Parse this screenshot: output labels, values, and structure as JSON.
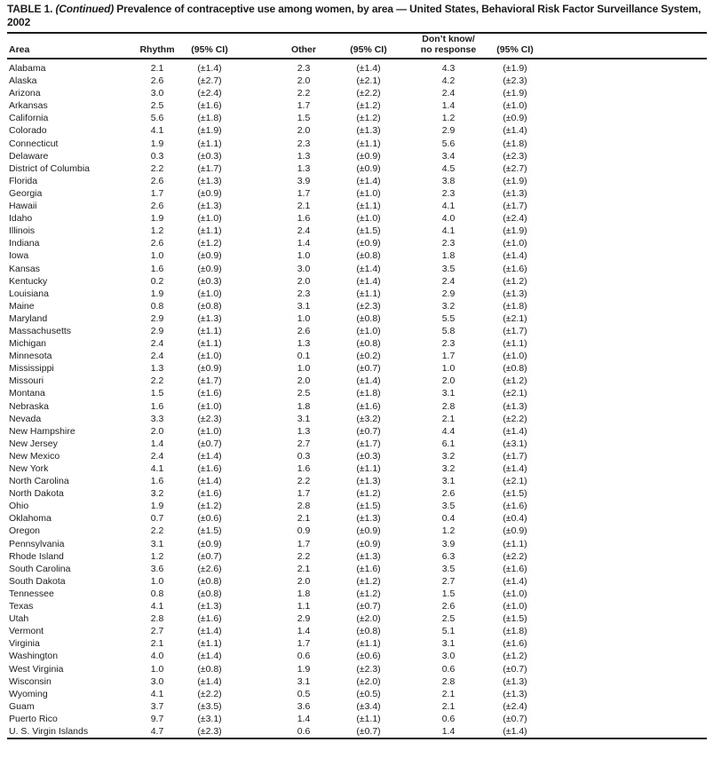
{
  "doc": {
    "title_prefix": "TABLE 1.",
    "title_continued": "(Continued)",
    "title_rest": "Prevalence of contraceptive use among women, by area — United States, Behavioral Risk Factor Surveillance System, 2002"
  },
  "table": {
    "header": {
      "area": "Area",
      "rhythm": "Rhythm",
      "ci_1": "(95% CI)",
      "other": "Other",
      "ci_2": "(95% CI)",
      "dont_know_line1": "Don’t know/",
      "dont_know_line2": "no response",
      "ci_3": "(95% CI)"
    },
    "columns": [
      "Area",
      "Rhythm",
      "(95% CI)",
      "Other",
      "(95% CI)",
      "Don’t know/no response",
      "(95% CI)"
    ],
    "rows": [
      [
        "Alabama",
        "2.1",
        "(±1.4)",
        "2.3",
        "(±1.4)",
        "4.3",
        "(±1.9)"
      ],
      [
        "Alaska",
        "2.6",
        "(±2.7)",
        "2.0",
        "(±2.1)",
        "4.2",
        "(±2.3)"
      ],
      [
        "Arizona",
        "3.0",
        "(±2.4)",
        "2.2",
        "(±2.2)",
        "2.4",
        "(±1.9)"
      ],
      [
        "Arkansas",
        "2.5",
        "(±1.6)",
        "1.7",
        "(±1.2)",
        "1.4",
        "(±1.0)"
      ],
      [
        "California",
        "5.6",
        "(±1.8)",
        "1.5",
        "(±1.2)",
        "1.2",
        "(±0.9)"
      ],
      [
        "Colorado",
        "4.1",
        "(±1.9)",
        "2.0",
        "(±1.3)",
        "2.9",
        "(±1.4)"
      ],
      [
        "Connecticut",
        "1.9",
        "(±1.1)",
        "2.3",
        "(±1.1)",
        "5.6",
        "(±1.8)"
      ],
      [
        "Delaware",
        "0.3",
        "(±0.3)",
        "1.3",
        "(±0.9)",
        "3.4",
        "(±2.3)"
      ],
      [
        "District of Columbia",
        "2.2",
        "(±1.7)",
        "1.3",
        "(±0.9)",
        "4.5",
        "(±2.7)"
      ],
      [
        "Florida",
        "2.6",
        "(±1.3)",
        "3.9",
        "(±1.4)",
        "3.8",
        "(±1.9)"
      ],
      [
        "Georgia",
        "1.7",
        "(±0.9)",
        "1.7",
        "(±1.0)",
        "2.3",
        "(±1.3)"
      ],
      [
        "Hawaii",
        "2.6",
        "(±1.3)",
        "2.1",
        "(±1.1)",
        "4.1",
        "(±1.7)"
      ],
      [
        "Idaho",
        "1.9",
        "(±1.0)",
        "1.6",
        "(±1.0)",
        "4.0",
        "(±2.4)"
      ],
      [
        "Illinois",
        "1.2",
        "(±1.1)",
        "2.4",
        "(±1.5)",
        "4.1",
        "(±1.9)"
      ],
      [
        "Indiana",
        "2.6",
        "(±1.2)",
        "1.4",
        "(±0.9)",
        "2.3",
        "(±1.0)"
      ],
      [
        "Iowa",
        "1.0",
        "(±0.9)",
        "1.0",
        "(±0.8)",
        "1.8",
        "(±1.4)"
      ],
      [
        "Kansas",
        "1.6",
        "(±0.9)",
        "3.0",
        "(±1.4)",
        "3.5",
        "(±1.6)"
      ],
      [
        "Kentucky",
        "0.2",
        "(±0.3)",
        "2.0",
        "(±1.4)",
        "2.4",
        "(±1.2)"
      ],
      [
        "Louisiana",
        "1.9",
        "(±1.0)",
        "2.3",
        "(±1.1)",
        "2.9",
        "(±1.3)"
      ],
      [
        "Maine",
        "0.8",
        "(±0.8)",
        "3.1",
        "(±2.3)",
        "3.2",
        "(±1.8)"
      ],
      [
        "Maryland",
        "2.9",
        "(±1.3)",
        "1.0",
        "(±0.8)",
        "5.5",
        "(±2.1)"
      ],
      [
        "Massachusetts",
        "2.9",
        "(±1.1)",
        "2.6",
        "(±1.0)",
        "5.8",
        "(±1.7)"
      ],
      [
        "Michigan",
        "2.4",
        "(±1.1)",
        "1.3",
        "(±0.8)",
        "2.3",
        "(±1.1)"
      ],
      [
        "Minnesota",
        "2.4",
        "(±1.0)",
        "0.1",
        "(±0.2)",
        "1.7",
        "(±1.0)"
      ],
      [
        "Mississippi",
        "1.3",
        "(±0.9)",
        "1.0",
        "(±0.7)",
        "1.0",
        "(±0.8)"
      ],
      [
        "Missouri",
        "2.2",
        "(±1.7)",
        "2.0",
        "(±1.4)",
        "2.0",
        "(±1.2)"
      ],
      [
        "Montana",
        "1.5",
        "(±1.6)",
        "2.5",
        "(±1.8)",
        "3.1",
        "(±2.1)"
      ],
      [
        "Nebraska",
        "1.6",
        "(±1.0)",
        "1.8",
        "(±1.6)",
        "2.8",
        "(±1.3)"
      ],
      [
        "Nevada",
        "3.3",
        "(±2.3)",
        "3.1",
        "(±3.2)",
        "2.1",
        "(±2.2)"
      ],
      [
        "New Hampshire",
        "2.0",
        "(±1.0)",
        "1.3",
        "(±0.7)",
        "4.4",
        "(±1.4)"
      ],
      [
        "New Jersey",
        "1.4",
        "(±0.7)",
        "2.7",
        "(±1.7)",
        "6.1",
        "(±3.1)"
      ],
      [
        "New Mexico",
        "2.4",
        "(±1.4)",
        "0.3",
        "(±0.3)",
        "3.2",
        "(±1.7)"
      ],
      [
        "New York",
        "4.1",
        "(±1.6)",
        "1.6",
        "(±1.1)",
        "3.2",
        "(±1.4)"
      ],
      [
        "North Carolina",
        "1.6",
        "(±1.4)",
        "2.2",
        "(±1.3)",
        "3.1",
        "(±2.1)"
      ],
      [
        "North Dakota",
        "3.2",
        "(±1.6)",
        "1.7",
        "(±1.2)",
        "2.6",
        "(±1.5)"
      ],
      [
        "Ohio",
        "1.9",
        "(±1.2)",
        "2.8",
        "(±1.5)",
        "3.5",
        "(±1.6)"
      ],
      [
        "Oklahoma",
        "0.7",
        "(±0.6)",
        "2.1",
        "(±1.3)",
        "0.4",
        "(±0.4)"
      ],
      [
        "Oregon",
        "2.2",
        "(±1.5)",
        "0.9",
        "(±0.9)",
        "1.2",
        "(±0.9)"
      ],
      [
        "Pennsylvania",
        "3.1",
        "(±0.9)",
        "1.7",
        "(±0.9)",
        "3.9",
        "(±1.1)"
      ],
      [
        "Rhode Island",
        "1.2",
        "(±0.7)",
        "2.2",
        "(±1.3)",
        "6.3",
        "(±2.2)"
      ],
      [
        "South Carolina",
        "3.6",
        "(±2.6)",
        "2.1",
        "(±1.6)",
        "3.5",
        "(±1.6)"
      ],
      [
        "South Dakota",
        "1.0",
        "(±0.8)",
        "2.0",
        "(±1.2)",
        "2.7",
        "(±1.4)"
      ],
      [
        "Tennessee",
        "0.8",
        "(±0.8)",
        "1.8",
        "(±1.2)",
        "1.5",
        "(±1.0)"
      ],
      [
        "Texas",
        "4.1",
        "(±1.3)",
        "1.1",
        "(±0.7)",
        "2.6",
        "(±1.0)"
      ],
      [
        "Utah",
        "2.8",
        "(±1.6)",
        "2.9",
        "(±2.0)",
        "2.5",
        "(±1.5)"
      ],
      [
        "Vermont",
        "2.7",
        "(±1.4)",
        "1.4",
        "(±0.8)",
        "5.1",
        "(±1.8)"
      ],
      [
        "Virginia",
        "2.1",
        "(±1.1)",
        "1.7",
        "(±1.1)",
        "3.1",
        "(±1.6)"
      ],
      [
        "Washington",
        "4.0",
        "(±1.4)",
        "0.6",
        "(±0.6)",
        "3.0",
        "(±1.2)"
      ],
      [
        "West Virginia",
        "1.0",
        "(±0.8)",
        "1.9",
        "(±2.3)",
        "0.6",
        "(±0.7)"
      ],
      [
        "Wisconsin",
        "3.0",
        "(±1.4)",
        "3.1",
        "(±2.0)",
        "2.8",
        "(±1.3)"
      ],
      [
        "Wyoming",
        "4.1",
        "(±2.2)",
        "0.5",
        "(±0.5)",
        "2.1",
        "(±1.3)"
      ],
      [
        "Guam",
        "3.7",
        "(±3.5)",
        "3.6",
        "(±3.4)",
        "2.1",
        "(±2.4)"
      ],
      [
        "Puerto Rico",
        "9.7",
        "(±3.1)",
        "1.4",
        "(±1.1)",
        "0.6",
        "(±0.7)"
      ],
      [
        "U. S. Virgin Islands",
        "4.7",
        "(±2.3)",
        "0.6",
        "(±0.7)",
        "1.4",
        "(±1.4)"
      ]
    ]
  }
}
